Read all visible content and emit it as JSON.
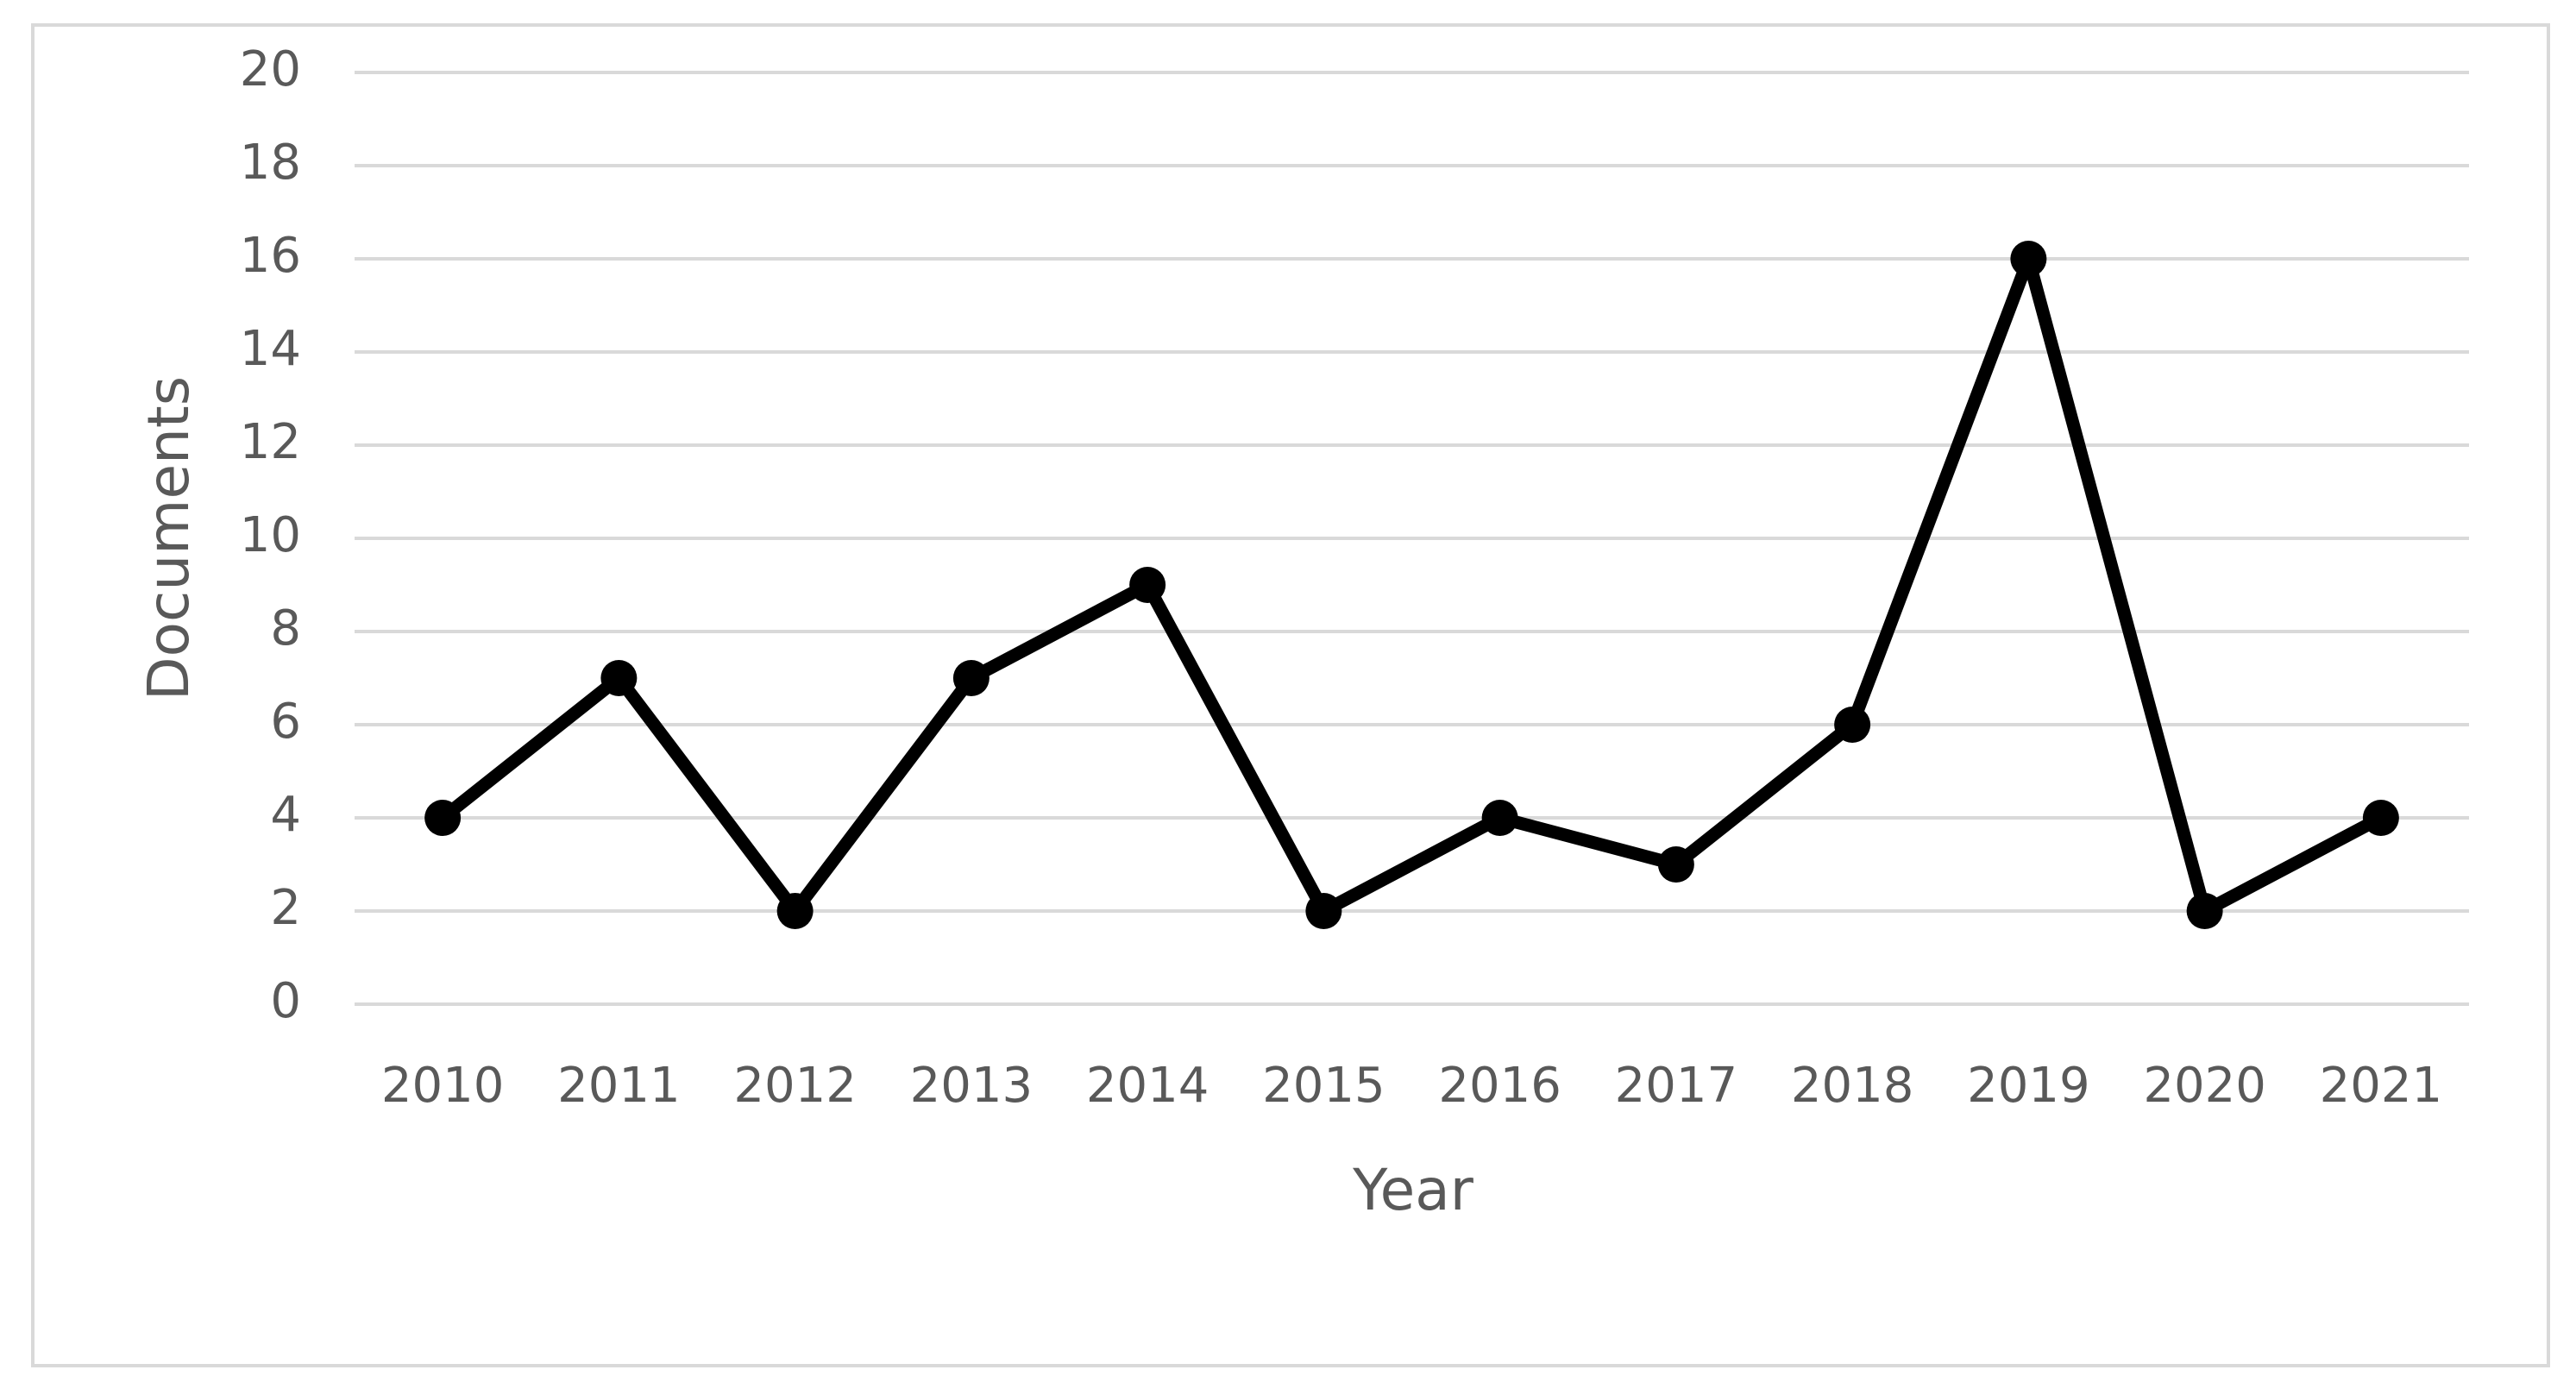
{
  "chart_data": {
    "type": "line",
    "x_label": "Year",
    "y_label": "Documents",
    "categories": [
      "2010",
      "2011",
      "2012",
      "2013",
      "2014",
      "2015",
      "2016",
      "2017",
      "2018",
      "2019",
      "2020",
      "2021"
    ],
    "values": [
      4,
      7,
      2,
      7,
      9,
      2,
      4,
      3,
      6,
      16,
      2,
      4
    ],
    "color": "#000000",
    "ylim": [
      0,
      20
    ],
    "yticks": [
      0,
      2,
      4,
      6,
      8,
      10,
      12,
      14,
      16,
      18,
      20
    ],
    "grid": true
  }
}
